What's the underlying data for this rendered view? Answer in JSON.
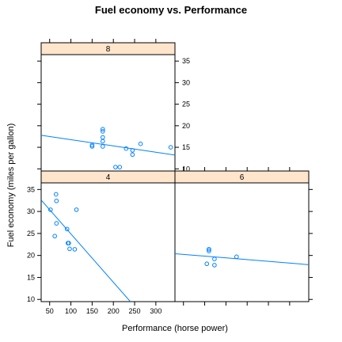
{
  "chart_data": {
    "type": "scatter",
    "title": "Fuel economy vs. Performance",
    "xlabel": "Performance (horse power)",
    "ylabel": "Fuel economy (miles per gallon)",
    "xlim": [
      30,
      345
    ],
    "ylim": [
      9.5,
      36.5
    ],
    "x_ticks": [
      50,
      100,
      150,
      200,
      250,
      300
    ],
    "y_ticks": [
      10,
      15,
      20,
      25,
      30,
      35
    ],
    "strip_color": "#ffe5cc",
    "point_color": "#0080ff",
    "panels": [
      {
        "label": "8",
        "points": [
          [
            150,
            15.2
          ],
          [
            150,
            15.5
          ],
          [
            175,
            16.4
          ],
          [
            175,
            17.3
          ],
          [
            175,
            15.2
          ],
          [
            175,
            18.7
          ],
          [
            175,
            19.2
          ],
          [
            205,
            10.4
          ],
          [
            215,
            10.4
          ],
          [
            230,
            14.7
          ],
          [
            245,
            13.3
          ],
          [
            245,
            14.3
          ],
          [
            264,
            15.8
          ],
          [
            335,
            15.0
          ]
        ],
        "fit": [
          [
            30,
            17.8
          ],
          [
            345,
            13.2
          ]
        ]
      },
      {
        "label": "4",
        "points": [
          [
            52,
            30.4
          ],
          [
            62,
            24.4
          ],
          [
            65,
            33.9
          ],
          [
            66,
            32.4
          ],
          [
            66,
            27.3
          ],
          [
            91,
            26.0
          ],
          [
            93,
            22.8
          ],
          [
            95,
            22.8
          ],
          [
            97,
            21.5
          ],
          [
            109,
            21.4
          ],
          [
            113,
            30.4
          ]
        ],
        "fit": [
          [
            30,
            32.6
          ],
          [
            240,
            9.5
          ]
        ]
      },
      {
        "label": "6",
        "points": [
          [
            105,
            18.1
          ],
          [
            110,
            21.0
          ],
          [
            110,
            21.4
          ],
          [
            123,
            19.2
          ],
          [
            123,
            17.8
          ],
          [
            175,
            19.7
          ],
          [
            110,
            21.4
          ]
        ],
        "fit": [
          [
            30,
            20.4
          ],
          [
            345,
            17.9
          ]
        ]
      }
    ]
  }
}
